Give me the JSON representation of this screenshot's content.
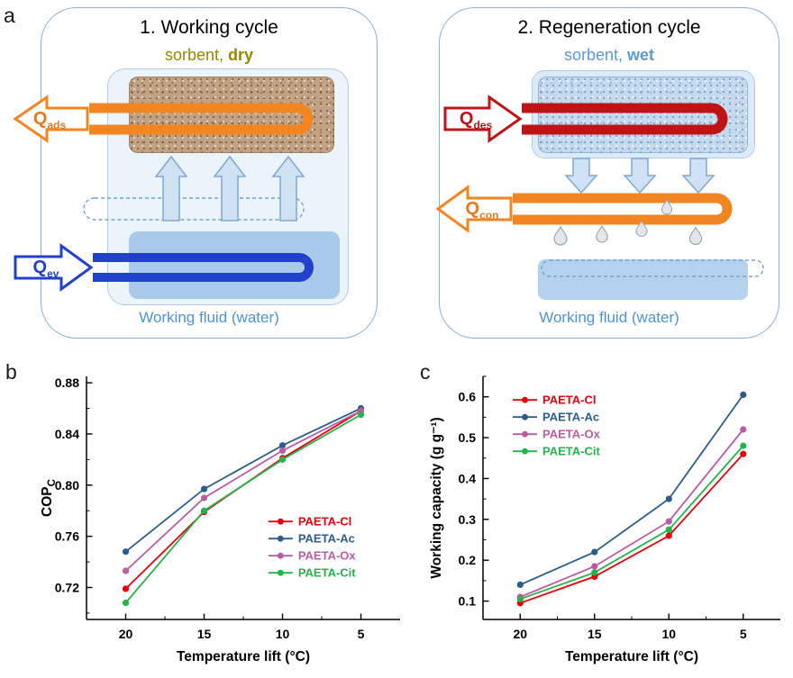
{
  "figure": {
    "panel_a_label": "a",
    "panel_b_label": "b",
    "panel_c_label": "c"
  },
  "diagram": {
    "left": {
      "title": "1. Working cycle",
      "subtitle_prefix": "sorbent, ",
      "subtitle_state": "dry",
      "q_out": "Q",
      "q_out_sub": "ads",
      "q_in": "Q",
      "q_in_sub": "ev",
      "fluid_label": "Working fluid (water)"
    },
    "right": {
      "title": "2. Regeneration cycle",
      "subtitle_prefix": "sorbent, ",
      "subtitle_state": "wet",
      "q_in": "Q",
      "q_in_sub": "des",
      "q_out": "Q",
      "q_out_sub": "con",
      "fluid_label": "Working fluid (water)"
    },
    "colors": {
      "heat_out": "#f28522",
      "heat_in_evap": "#2141cc",
      "heat_in_des": "#c01318",
      "box_border": "#8ab0d8",
      "subtitle_dry": "#9a8700",
      "subtitle_wet": "#5b9bd5",
      "fluid_text": "#4f93d6",
      "vapor_arrow_fill": "#cfe2f4",
      "vapor_arrow_stroke": "#7fa8d0"
    }
  },
  "chart_data": [
    {
      "id": "chart-b",
      "type": "line",
      "title": "",
      "xlabel": "Temperature lift (°C)",
      "ylabel": "COP",
      "ylabel_sub": "C",
      "x": [
        20,
        15,
        10,
        5
      ],
      "x_reversed": true,
      "xlim": [
        22.5,
        2.5
      ],
      "ylim": [
        0.695,
        0.885
      ],
      "xticks": [
        "20",
        "15",
        "10",
        "5"
      ],
      "yticks": [
        "0.72",
        "0.76",
        "0.80",
        "0.84",
        "0.88"
      ],
      "grid": false,
      "legend_position": "inside-bottom-right",
      "legend_pos": [
        0.58,
        0.56
      ],
      "series": [
        {
          "name": "PAETA-Cl",
          "color": "#e8000b",
          "values": [
            0.719,
            0.779,
            0.821,
            0.858
          ]
        },
        {
          "name": "PAETA-Ac",
          "color": "#2b5d8c",
          "values": [
            0.748,
            0.797,
            0.831,
            0.86
          ]
        },
        {
          "name": "PAETA-Ox",
          "color": "#bb5ba2",
          "values": [
            0.733,
            0.79,
            0.827,
            0.858
          ]
        },
        {
          "name": "PAETA-Cit",
          "color": "#25b34b",
          "values": [
            0.708,
            0.78,
            0.82,
            0.855
          ]
        }
      ]
    },
    {
      "id": "chart-c",
      "type": "line",
      "title": "",
      "xlabel": "Temperature lift (°C)",
      "ylabel": "Working capacity (g g⁻¹)",
      "ylabel_sub": "",
      "x": [
        20,
        15,
        10,
        5
      ],
      "x_reversed": true,
      "xlim": [
        22.5,
        2.5
      ],
      "ylim": [
        0.055,
        0.65
      ],
      "xticks": [
        "20",
        "15",
        "10",
        "5"
      ],
      "yticks": [
        "0.1",
        "0.2",
        "0.3",
        "0.4",
        "0.5",
        "0.6"
      ],
      "grid": false,
      "legend_position": "inside-top-left",
      "legend_pos": [
        0.1,
        0.06
      ],
      "series": [
        {
          "name": "PAETA-Cl",
          "color": "#e8000b",
          "values": [
            0.095,
            0.16,
            0.26,
            0.46
          ]
        },
        {
          "name": "PAETA-Ac",
          "color": "#2b5d8c",
          "values": [
            0.14,
            0.22,
            0.35,
            0.605
          ]
        },
        {
          "name": "PAETA-Ox",
          "color": "#bb5ba2",
          "values": [
            0.11,
            0.185,
            0.295,
            0.52
          ]
        },
        {
          "name": "PAETA-Cit",
          "color": "#25b34b",
          "values": [
            0.105,
            0.17,
            0.275,
            0.48
          ]
        }
      ]
    }
  ]
}
